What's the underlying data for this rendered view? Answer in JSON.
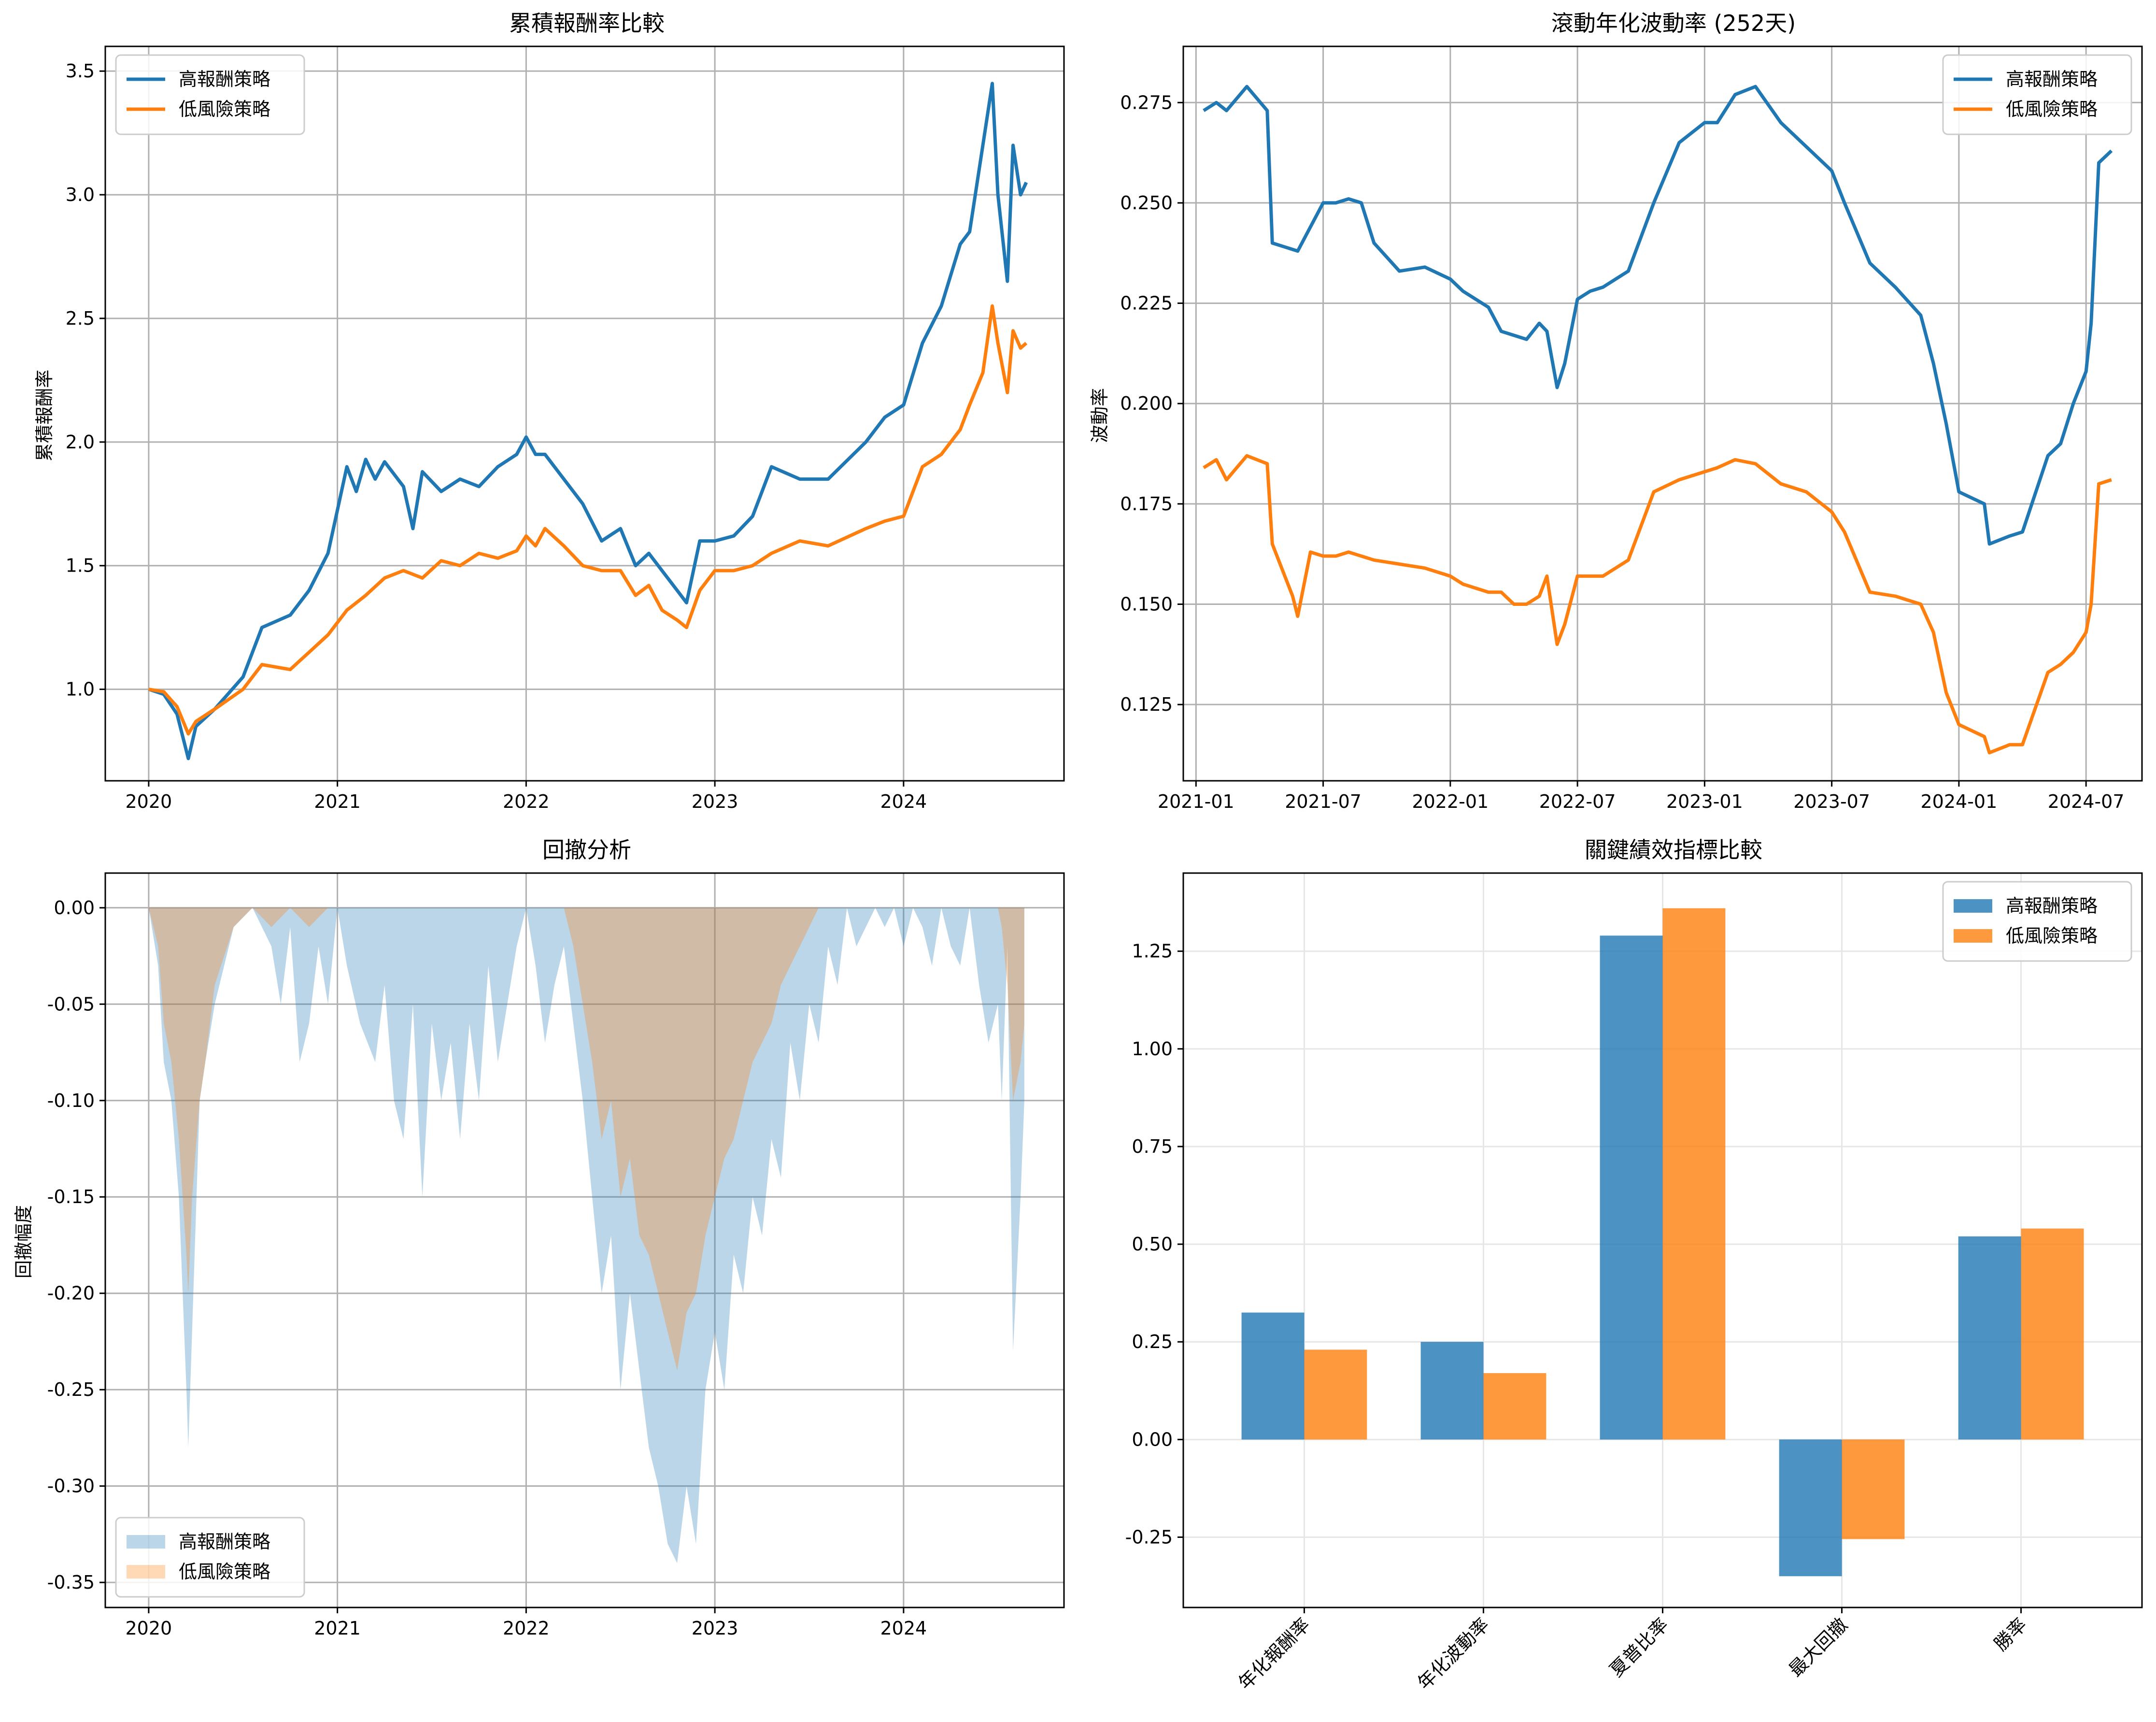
{
  "colors": {
    "high": "#1f77b4",
    "low": "#ff7f0e",
    "grid": "#b0b0b0"
  },
  "chart_data": [
    {
      "id": "cumret",
      "type": "line",
      "title": "累積報酬率比較",
      "xlabel": "",
      "ylabel": "累積報酬率",
      "xlim": [
        2019.77,
        2024.85
      ],
      "ylim": [
        0.63,
        3.6
      ],
      "xticks": [
        2020,
        2021,
        2022,
        2023,
        2024
      ],
      "xtick_labels": [
        "2020",
        "2021",
        "2022",
        "2023",
        "2024"
      ],
      "yticks": [
        1.0,
        1.5,
        2.0,
        2.5,
        3.0,
        3.5
      ],
      "ytick_labels": [
        "1.0",
        "1.5",
        "2.0",
        "2.5",
        "3.0",
        "3.5"
      ],
      "grid": true,
      "legend": "upper-left",
      "series": [
        {
          "name": "高報酬策略",
          "color": "high",
          "x": [
            2020.0,
            2020.08,
            2020.15,
            2020.21,
            2020.25,
            2020.35,
            2020.5,
            2020.6,
            2020.75,
            2020.85,
            2020.95,
            2021.05,
            2021.1,
            2021.15,
            2021.2,
            2021.25,
            2021.35,
            2021.4,
            2021.45,
            2021.55,
            2021.65,
            2021.75,
            2021.85,
            2021.95,
            2022.0,
            2022.05,
            2022.1,
            2022.2,
            2022.3,
            2022.4,
            2022.5,
            2022.58,
            2022.65,
            2022.72,
            2022.8,
            2022.85,
            2022.92,
            2023.0,
            2023.1,
            2023.2,
            2023.3,
            2023.45,
            2023.6,
            2023.8,
            2023.9,
            2024.0,
            2024.1,
            2024.2,
            2024.3,
            2024.35,
            2024.42,
            2024.47,
            2024.5,
            2024.55,
            2024.58,
            2024.62,
            2024.65
          ],
          "y": [
            1.0,
            0.98,
            0.9,
            0.72,
            0.85,
            0.92,
            1.05,
            1.25,
            1.3,
            1.4,
            1.55,
            1.9,
            1.8,
            1.93,
            1.85,
            1.92,
            1.82,
            1.65,
            1.88,
            1.8,
            1.85,
            1.82,
            1.9,
            1.95,
            2.02,
            1.95,
            1.95,
            1.85,
            1.75,
            1.6,
            1.65,
            1.5,
            1.55,
            1.48,
            1.4,
            1.35,
            1.6,
            1.6,
            1.62,
            1.7,
            1.9,
            1.85,
            1.85,
            2.0,
            2.1,
            2.15,
            2.4,
            2.55,
            2.8,
            2.85,
            3.2,
            3.45,
            3.0,
            2.65,
            3.2,
            3.0,
            3.05
          ]
        },
        {
          "name": "低風險策略",
          "color": "low",
          "x": [
            2020.0,
            2020.08,
            2020.15,
            2020.21,
            2020.25,
            2020.35,
            2020.5,
            2020.6,
            2020.75,
            2020.85,
            2020.95,
            2021.05,
            2021.15,
            2021.25,
            2021.35,
            2021.45,
            2021.55,
            2021.65,
            2021.75,
            2021.85,
            2021.95,
            2022.0,
            2022.05,
            2022.1,
            2022.2,
            2022.3,
            2022.4,
            2022.5,
            2022.58,
            2022.65,
            2022.72,
            2022.8,
            2022.85,
            2022.92,
            2023.0,
            2023.1,
            2023.2,
            2023.3,
            2023.45,
            2023.6,
            2023.8,
            2023.9,
            2024.0,
            2024.1,
            2024.2,
            2024.3,
            2024.35,
            2024.42,
            2024.47,
            2024.5,
            2024.55,
            2024.58,
            2024.62,
            2024.65
          ],
          "y": [
            1.0,
            0.99,
            0.93,
            0.82,
            0.87,
            0.92,
            1.0,
            1.1,
            1.08,
            1.15,
            1.22,
            1.32,
            1.38,
            1.45,
            1.48,
            1.45,
            1.52,
            1.5,
            1.55,
            1.53,
            1.56,
            1.62,
            1.58,
            1.65,
            1.58,
            1.5,
            1.48,
            1.48,
            1.38,
            1.42,
            1.32,
            1.28,
            1.25,
            1.4,
            1.48,
            1.48,
            1.5,
            1.55,
            1.6,
            1.58,
            1.65,
            1.68,
            1.7,
            1.9,
            1.95,
            2.05,
            2.15,
            2.28,
            2.55,
            2.4,
            2.2,
            2.45,
            2.38,
            2.4
          ]
        }
      ]
    },
    {
      "id": "vol",
      "type": "line",
      "title": "滾動年化波動率 (252天)",
      "xlabel": "",
      "ylabel": "波動率",
      "xlim": [
        2020.95,
        2024.72
      ],
      "ylim": [
        0.106,
        0.289
      ],
      "xticks": [
        2021.0,
        2021.5,
        2022.0,
        2022.5,
        2023.0,
        2023.5,
        2024.0,
        2024.5
      ],
      "xtick_labels": [
        "2021-01",
        "2021-07",
        "2022-01",
        "2022-07",
        "2023-01",
        "2023-07",
        "2024-01",
        "2024-07"
      ],
      "yticks": [
        0.125,
        0.15,
        0.175,
        0.2,
        0.225,
        0.25,
        0.275
      ],
      "ytick_labels": [
        "0.125",
        "0.150",
        "0.175",
        "0.200",
        "0.225",
        "0.250",
        "0.275"
      ],
      "grid": true,
      "legend": "upper-right",
      "series": [
        {
          "name": "高報酬策略",
          "color": "high",
          "x": [
            2021.03,
            2021.08,
            2021.12,
            2021.2,
            2021.28,
            2021.3,
            2021.4,
            2021.5,
            2021.55,
            2021.6,
            2021.65,
            2021.7,
            2021.8,
            2021.9,
            2022.0,
            2022.05,
            2022.15,
            2022.2,
            2022.25,
            2022.3,
            2022.35,
            2022.38,
            2022.42,
            2022.45,
            2022.5,
            2022.55,
            2022.6,
            2022.7,
            2022.8,
            2022.9,
            2023.0,
            2023.05,
            2023.12,
            2023.2,
            2023.3,
            2023.4,
            2023.5,
            2023.55,
            2023.65,
            2023.75,
            2023.85,
            2023.9,
            2023.95,
            2024.0,
            2024.1,
            2024.12,
            2024.2,
            2024.25,
            2024.35,
            2024.4,
            2024.45,
            2024.5,
            2024.52,
            2024.55,
            2024.6
          ],
          "y": [
            0.273,
            0.275,
            0.273,
            0.279,
            0.273,
            0.24,
            0.238,
            0.25,
            0.25,
            0.251,
            0.25,
            0.24,
            0.233,
            0.234,
            0.231,
            0.228,
            0.224,
            0.218,
            0.217,
            0.216,
            0.22,
            0.218,
            0.204,
            0.21,
            0.226,
            0.228,
            0.229,
            0.233,
            0.25,
            0.265,
            0.27,
            0.27,
            0.277,
            0.279,
            0.27,
            0.264,
            0.258,
            0.25,
            0.235,
            0.229,
            0.222,
            0.21,
            0.195,
            0.178,
            0.175,
            0.165,
            0.167,
            0.168,
            0.187,
            0.19,
            0.2,
            0.208,
            0.22,
            0.26,
            0.263
          ]
        },
        {
          "name": "低風險策略",
          "color": "low",
          "x": [
            2021.03,
            2021.08,
            2021.12,
            2021.2,
            2021.28,
            2021.3,
            2021.38,
            2021.4,
            2021.45,
            2021.5,
            2021.55,
            2021.6,
            2021.7,
            2021.8,
            2021.9,
            2022.0,
            2022.05,
            2022.15,
            2022.2,
            2022.25,
            2022.3,
            2022.35,
            2022.38,
            2022.42,
            2022.45,
            2022.5,
            2022.6,
            2022.7,
            2022.8,
            2022.9,
            2023.0,
            2023.05,
            2023.12,
            2023.2,
            2023.3,
            2023.4,
            2023.5,
            2023.55,
            2023.65,
            2023.75,
            2023.85,
            2023.9,
            2023.95,
            2024.0,
            2024.1,
            2024.12,
            2024.2,
            2024.25,
            2024.35,
            2024.4,
            2024.45,
            2024.5,
            2024.52,
            2024.55,
            2024.6
          ],
          "y": [
            0.184,
            0.186,
            0.181,
            0.187,
            0.185,
            0.165,
            0.152,
            0.147,
            0.163,
            0.162,
            0.162,
            0.163,
            0.161,
            0.16,
            0.159,
            0.157,
            0.155,
            0.153,
            0.153,
            0.15,
            0.15,
            0.152,
            0.157,
            0.14,
            0.145,
            0.157,
            0.157,
            0.161,
            0.178,
            0.181,
            0.183,
            0.184,
            0.186,
            0.185,
            0.18,
            0.178,
            0.173,
            0.168,
            0.153,
            0.152,
            0.15,
            0.143,
            0.128,
            0.12,
            0.117,
            0.113,
            0.115,
            0.115,
            0.133,
            0.135,
            0.138,
            0.143,
            0.15,
            0.18,
            0.181
          ]
        }
      ]
    },
    {
      "id": "drawdown",
      "type": "area",
      "title": "回撤分析",
      "xlabel": "",
      "ylabel": "回撤幅度",
      "xlim": [
        2019.77,
        2024.85
      ],
      "ylim": [
        -0.363,
        0.018
      ],
      "xticks": [
        2020,
        2021,
        2022,
        2023,
        2024
      ],
      "xtick_labels": [
        "2020",
        "2021",
        "2022",
        "2023",
        "2024"
      ],
      "yticks": [
        0.0,
        -0.05,
        -0.1,
        -0.15,
        -0.2,
        -0.25,
        -0.3,
        -0.35
      ],
      "ytick_labels": [
        "0.00",
        "-0.05",
        "-0.10",
        "-0.15",
        "-0.20",
        "-0.25",
        "-0.30",
        "-0.35"
      ],
      "grid": true,
      "legend": "lower-left",
      "series": [
        {
          "name": "高報酬策略",
          "color": "high",
          "x": [
            2020.0,
            2020.05,
            2020.08,
            2020.12,
            2020.16,
            2020.2,
            2020.21,
            2020.23,
            2020.27,
            2020.3,
            2020.35,
            2020.45,
            2020.55,
            2020.65,
            2020.7,
            2020.75,
            2020.8,
            2020.85,
            2020.9,
            2020.95,
            2021.0,
            2021.05,
            2021.12,
            2021.2,
            2021.25,
            2021.3,
            2021.35,
            2021.4,
            2021.45,
            2021.5,
            2021.55,
            2021.6,
            2021.65,
            2021.7,
            2021.75,
            2021.8,
            2021.85,
            2021.9,
            2021.95,
            2022.0,
            2022.05,
            2022.1,
            2022.15,
            2022.2,
            2022.3,
            2022.35,
            2022.4,
            2022.45,
            2022.5,
            2022.55,
            2022.6,
            2022.65,
            2022.7,
            2022.75,
            2022.8,
            2022.85,
            2022.9,
            2022.95,
            2023.0,
            2023.05,
            2023.1,
            2023.15,
            2023.2,
            2023.25,
            2023.3,
            2023.35,
            2023.4,
            2023.45,
            2023.5,
            2023.55,
            2023.6,
            2023.65,
            2023.7,
            2023.75,
            2023.85,
            2023.9,
            2023.95,
            2024.0,
            2024.05,
            2024.1,
            2024.15,
            2024.2,
            2024.25,
            2024.3,
            2024.35,
            2024.4,
            2024.45,
            2024.5,
            2024.52,
            2024.55,
            2024.58,
            2024.62,
            2024.64
          ],
          "y": [
            0.0,
            -0.03,
            -0.08,
            -0.1,
            -0.15,
            -0.25,
            -0.28,
            -0.22,
            -0.1,
            -0.08,
            -0.05,
            -0.01,
            0.0,
            -0.02,
            -0.05,
            -0.01,
            -0.08,
            -0.06,
            -0.02,
            -0.05,
            0.0,
            -0.03,
            -0.06,
            -0.08,
            -0.04,
            -0.1,
            -0.12,
            -0.05,
            -0.15,
            -0.06,
            -0.1,
            -0.07,
            -0.12,
            -0.06,
            -0.1,
            -0.03,
            -0.08,
            -0.05,
            -0.02,
            0.0,
            -0.03,
            -0.07,
            -0.04,
            -0.02,
            -0.1,
            -0.15,
            -0.2,
            -0.17,
            -0.25,
            -0.2,
            -0.24,
            -0.28,
            -0.3,
            -0.33,
            -0.34,
            -0.3,
            -0.33,
            -0.25,
            -0.22,
            -0.25,
            -0.18,
            -0.2,
            -0.15,
            -0.17,
            -0.12,
            -0.14,
            -0.07,
            -0.1,
            -0.05,
            -0.07,
            -0.02,
            -0.04,
            0.0,
            -0.02,
            0.0,
            -0.01,
            0.0,
            -0.02,
            0.0,
            -0.01,
            -0.03,
            0.0,
            -0.02,
            -0.03,
            0.0,
            -0.04,
            -0.07,
            -0.05,
            -0.1,
            -0.02,
            -0.23,
            -0.15,
            -0.1
          ]
        },
        {
          "name": "低風險策略",
          "color": "low",
          "x": [
            2020.0,
            2020.05,
            2020.08,
            2020.12,
            2020.16,
            2020.2,
            2020.21,
            2020.23,
            2020.27,
            2020.3,
            2020.35,
            2020.45,
            2020.55,
            2020.65,
            2020.75,
            2020.85,
            2020.95,
            2021.0,
            2021.1,
            2021.2,
            2021.3,
            2021.4,
            2021.5,
            2021.6,
            2021.7,
            2021.8,
            2021.9,
            2022.0,
            2022.1,
            2022.2,
            2022.25,
            2022.3,
            2022.35,
            2022.4,
            2022.45,
            2022.5,
            2022.55,
            2022.6,
            2022.65,
            2022.7,
            2022.75,
            2022.8,
            2022.85,
            2022.9,
            2022.95,
            2023.0,
            2023.05,
            2023.1,
            2023.15,
            2023.2,
            2023.25,
            2023.3,
            2023.35,
            2023.4,
            2023.45,
            2023.5,
            2023.55,
            2023.6,
            2023.65,
            2023.7,
            2023.8,
            2023.9,
            2024.0,
            2024.1,
            2024.2,
            2024.3,
            2024.4,
            2024.5,
            2024.52,
            2024.55,
            2024.58,
            2024.62,
            2024.64
          ],
          "y": [
            0.0,
            -0.02,
            -0.06,
            -0.08,
            -0.12,
            -0.18,
            -0.2,
            -0.15,
            -0.1,
            -0.08,
            -0.04,
            -0.01,
            0.0,
            -0.01,
            0.0,
            -0.01,
            0.0,
            0.0,
            0.0,
            0.0,
            0.0,
            0.0,
            0.0,
            0.0,
            0.0,
            0.0,
            0.0,
            0.0,
            0.0,
            0.0,
            -0.02,
            -0.05,
            -0.08,
            -0.12,
            -0.1,
            -0.15,
            -0.13,
            -0.17,
            -0.18,
            -0.2,
            -0.22,
            -0.24,
            -0.21,
            -0.2,
            -0.17,
            -0.15,
            -0.13,
            -0.12,
            -0.1,
            -0.08,
            -0.07,
            -0.06,
            -0.04,
            -0.03,
            -0.02,
            -0.01,
            0.0,
            0.0,
            0.0,
            0.0,
            0.0,
            0.0,
            0.0,
            0.0,
            0.0,
            0.0,
            0.0,
            0.0,
            -0.01,
            -0.04,
            -0.1,
            -0.08,
            -0.06
          ]
        }
      ]
    },
    {
      "id": "metrics",
      "type": "bar",
      "title": "關鍵績效指標比較",
      "xlabel": "",
      "ylabel": "",
      "ylim": [
        -0.43,
        1.45
      ],
      "yticks": [
        -0.25,
        0.0,
        0.25,
        0.5,
        0.75,
        1.0,
        1.25
      ],
      "ytick_labels": [
        "-0.25",
        "0.00",
        "0.25",
        "0.50",
        "0.75",
        "1.00",
        "1.25"
      ],
      "categories": [
        "年化報酬率",
        "年化波動率",
        "夏普比率",
        "最大回撤",
        "勝率"
      ],
      "grid": true,
      "legend": "upper-right",
      "series": [
        {
          "name": "高報酬策略",
          "color": "high",
          "values": [
            0.325,
            0.25,
            1.29,
            -0.35,
            0.52
          ]
        },
        {
          "name": "低風險策略",
          "color": "low",
          "values": [
            0.23,
            0.17,
            1.36,
            -0.255,
            0.54
          ]
        }
      ]
    }
  ]
}
